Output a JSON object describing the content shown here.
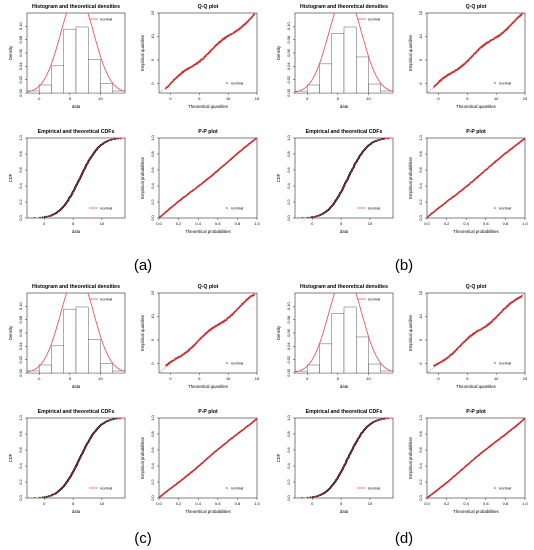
{
  "panels": [
    {
      "letter": "(a)",
      "variant": 0
    },
    {
      "letter": "(b)",
      "variant": 1
    },
    {
      "letter": "(c)",
      "variant": 2
    },
    {
      "letter": "(d)",
      "variant": 3
    }
  ],
  "colors": {
    "fit": "#e8474f",
    "points": "#d0282d",
    "ecdf": "#000000",
    "reference": "#7a7a7a"
  },
  "chart_data": [
    {
      "type": "histogram",
      "title": "Histogram and theoretical densities",
      "xlabel": "data",
      "ylabel": "Density",
      "xlim": [
        -2,
        14
      ],
      "ylim": [
        0,
        0.12
      ],
      "xticks": [
        0,
        5,
        10
      ],
      "yticks": [
        0.0,
        0.02,
        0.04,
        0.06,
        0.08,
        0.1
      ],
      "ytick_labels": [
        "0.00",
        "0.02",
        "0.04",
        "0.06",
        "0.08",
        "0.10"
      ],
      "legend": [
        "normal"
      ],
      "legend_position": "top-right",
      "bins": [
        [
          -2,
          0
        ],
        [
          0,
          2
        ],
        [
          2,
          4
        ],
        [
          4,
          6
        ],
        [
          6,
          8
        ],
        [
          8,
          10
        ],
        [
          10,
          12
        ],
        [
          12,
          14
        ]
      ],
      "densities": [
        0.003,
        0.012,
        0.042,
        0.093,
        0.099,
        0.052,
        0.014,
        0.003
      ],
      "fit": {
        "distribution": "normal",
        "mean": 6.2,
        "sd": 2.7
      }
    },
    {
      "type": "scatter",
      "title": "Q-Q plot",
      "xlabel": "Theoretical quantiles",
      "ylabel": "Empirical quantiles",
      "xlim": [
        -2,
        15
      ],
      "ylim": [
        -2,
        15
      ],
      "xticks": [
        0,
        5,
        10,
        15
      ],
      "yticks": [
        0,
        5,
        10,
        15
      ],
      "legend": [
        "normal"
      ],
      "legend_position": "bottom-right",
      "reference_line": "y = x"
    },
    {
      "type": "line",
      "title": "Empirical and theoretical CDFs",
      "xlabel": "data",
      "ylabel": "CDF",
      "xlim": [
        -3,
        14
      ],
      "ylim": [
        0,
        1
      ],
      "xticks": [
        0,
        5,
        10
      ],
      "yticks": [
        0.0,
        0.2,
        0.4,
        0.6,
        0.8,
        1.0
      ],
      "ytick_labels": [
        "0.0",
        "0.2",
        "0.4",
        "0.6",
        "0.8",
        "1.0"
      ],
      "legend": [
        "normal"
      ],
      "legend_position": "bottom-right",
      "fit": {
        "distribution": "normal",
        "mean": 6.2,
        "sd": 2.7
      }
    },
    {
      "type": "scatter",
      "title": "P-P plot",
      "xlabel": "Theoretical probabilities",
      "ylabel": "Empirical probabilities",
      "xlim": [
        0,
        1
      ],
      "ylim": [
        0,
        1
      ],
      "xticks": [
        0.0,
        0.2,
        0.4,
        0.6,
        0.8,
        1.0
      ],
      "yticks": [
        0.0,
        0.2,
        0.4,
        0.6,
        0.8,
        1.0
      ],
      "tick_labels": [
        "0.0",
        "0.2",
        "0.4",
        "0.6",
        "0.8",
        "1.0"
      ],
      "legend": [
        "normal"
      ],
      "legend_position": "bottom-right",
      "reference_line": "y = x"
    }
  ]
}
